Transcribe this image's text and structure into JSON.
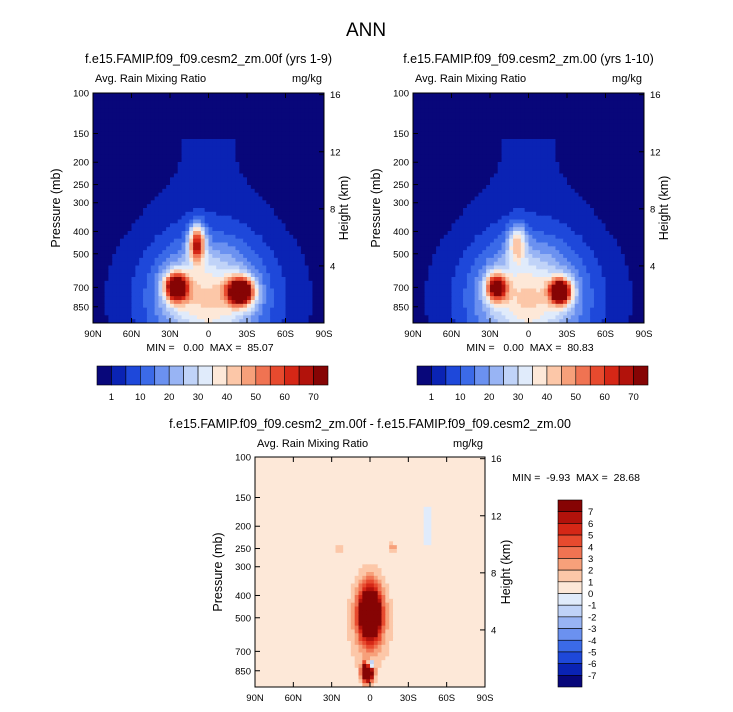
{
  "figure": {
    "title": "ANN"
  },
  "chart_data": [
    {
      "type": "heatmap",
      "title": "f.e15.FAMIP.f09_f09.cesm2_zm.00f (yrs 1-9)",
      "left_label": "Avg. Rain Mixing Ratio",
      "right_label": "mg/kg",
      "xlabel": "",
      "ylabel": "Pressure (mb)",
      "y2label": "Height (km)",
      "x_ticks": [
        "90N",
        "60N",
        "30N",
        "0",
        "30S",
        "60S",
        "90S"
      ],
      "x_tick_values": [
        90,
        60,
        30,
        0,
        -30,
        -60,
        -90
      ],
      "y_ticks": [
        "100",
        "150",
        "200",
        "250",
        "300",
        "400",
        "500",
        "700",
        "850"
      ],
      "y_tick_values": [
        100,
        150,
        200,
        250,
        300,
        400,
        500,
        700,
        850
      ],
      "y2_ticks": [
        "16",
        "12",
        "8",
        "4"
      ],
      "xlim": [
        90,
        -90
      ],
      "ylim": [
        100,
        1000
      ],
      "stats": "MIN =   0.00  MAX =  85.07",
      "min": 0.0,
      "max": 85.07,
      "features": [
        {
          "lat": 9,
          "p": 450,
          "amp": 55,
          "wlat": 6,
          "wlp": 0.18
        },
        {
          "lat": 25,
          "p": 700,
          "amp": 72,
          "wlat": 9,
          "wlp": 0.14
        },
        {
          "lat": -25,
          "p": 730,
          "amp": 85,
          "wlat": 10,
          "wlp": 0.13
        }
      ]
    },
    {
      "type": "heatmap",
      "title": "f.e15.FAMIP.f09_f09.cesm2_zm.00 (yrs 1-10)",
      "left_label": "Avg. Rain Mixing Ratio",
      "right_label": "mg/kg",
      "xlabel": "",
      "ylabel": "Pressure (mb)",
      "y2label": "Height (km)",
      "x_ticks": [
        "90N",
        "60N",
        "30N",
        "0",
        "30S",
        "60S",
        "90S"
      ],
      "x_tick_values": [
        90,
        60,
        30,
        0,
        -30,
        -60,
        -90
      ],
      "y_ticks": [
        "100",
        "150",
        "200",
        "250",
        "300",
        "400",
        "500",
        "700",
        "850"
      ],
      "y_tick_values": [
        100,
        150,
        200,
        250,
        300,
        400,
        500,
        700,
        850
      ],
      "y2_ticks": [
        "16",
        "12",
        "8",
        "4"
      ],
      "xlim": [
        90,
        -90
      ],
      "ylim": [
        100,
        1000
      ],
      "stats": "MIN =   0.00  MAX =  80.83",
      "min": 0.0,
      "max": 80.83,
      "features": [
        {
          "lat": 9,
          "p": 450,
          "amp": 30,
          "wlat": 7,
          "wlp": 0.18
        },
        {
          "lat": 25,
          "p": 700,
          "amp": 60,
          "wlat": 8,
          "wlp": 0.13
        },
        {
          "lat": -25,
          "p": 730,
          "amp": 80,
          "wlat": 8,
          "wlp": 0.12
        }
      ]
    },
    {
      "type": "heatmap",
      "title": "f.e15.FAMIP.f09_f09.cesm2_zm.00f - f.e15.FAMIP.f09_f09.cesm2_zm.00",
      "left_label": "Avg. Rain Mixing Ratio",
      "right_label": "mg/kg",
      "xlabel": "",
      "ylabel": "Pressure (mb)",
      "y2label": "Height (km)",
      "x_ticks": [
        "90N",
        "60N",
        "30N",
        "0",
        "30S",
        "60S",
        "90S"
      ],
      "x_tick_values": [
        90,
        60,
        30,
        0,
        -30,
        -60,
        -90
      ],
      "y_ticks": [
        "100",
        "150",
        "200",
        "250",
        "300",
        "400",
        "500",
        "700",
        "850"
      ],
      "y_tick_values": [
        100,
        150,
        200,
        250,
        300,
        400,
        500,
        700,
        850
      ],
      "y2_ticks": [
        "16",
        "12",
        "8",
        "4"
      ],
      "xlim": [
        90,
        -90
      ],
      "ylim": [
        100,
        1000
      ],
      "stats": "MIN =  -9.93  MAX =  28.68",
      "min": -9.93,
      "max": 28.68,
      "features": [
        {
          "lat": 0,
          "p": 480,
          "amp": 14,
          "wlat": 9,
          "wlp": 0.28
        },
        {
          "lat": 2,
          "p": 860,
          "amp": 18,
          "wlat": 4,
          "wlp": 0.09
        },
        {
          "lat": 0,
          "p": 800,
          "amp": -13,
          "wlat": 2,
          "wlp": 0.05
        },
        {
          "lat": -18,
          "p": 250,
          "amp": 2.3,
          "wlat": 3,
          "wlp": 0.05
        },
        {
          "lat": 25,
          "p": 250,
          "amp": 1.5,
          "wlat": 3,
          "wlp": 0.05
        },
        {
          "lat": -45,
          "p": 200,
          "amp": -0.8,
          "wlat": 4,
          "wlp": 0.25
        }
      ]
    }
  ],
  "colorbars": [
    {
      "orientation": "horizontal",
      "labels": [
        "1",
        "10",
        "20",
        "30",
        "40",
        "50",
        "60",
        "70"
      ],
      "levels": [
        0,
        1,
        5,
        10,
        15,
        20,
        25,
        30,
        35,
        40,
        45,
        50,
        55,
        60,
        65,
        70
      ],
      "colors": [
        "#08077a",
        "#0a23b4",
        "#1e48da",
        "#3b6ae8",
        "#6b91f0",
        "#98b4f4",
        "#c0d3f8",
        "#e0ebfb",
        "#fde8d8",
        "#fcc7a8",
        "#f7a07a",
        "#f07352",
        "#e74a2e",
        "#d52716",
        "#b2120b",
        "#860404"
      ]
    },
    {
      "orientation": "vertical",
      "labels": [
        "7",
        "6",
        "5",
        "4",
        "3",
        "2",
        "1",
        "0",
        "-1",
        "-2",
        "-3",
        "-4",
        "-5",
        "-6",
        "-7"
      ],
      "levels": [
        -7,
        -6,
        -5,
        -4,
        -3,
        -2,
        -1,
        0,
        1,
        2,
        3,
        4,
        5,
        6,
        7
      ],
      "colors": [
        "#08077a",
        "#0a23b4",
        "#1e48da",
        "#3b6ae8",
        "#6b91f0",
        "#98b4f4",
        "#c0d3f8",
        "#e0ebfb",
        "#fde8d8",
        "#fcc7a8",
        "#f7a07a",
        "#f07352",
        "#e74a2e",
        "#d52716",
        "#b2120b",
        "#860404"
      ]
    }
  ]
}
